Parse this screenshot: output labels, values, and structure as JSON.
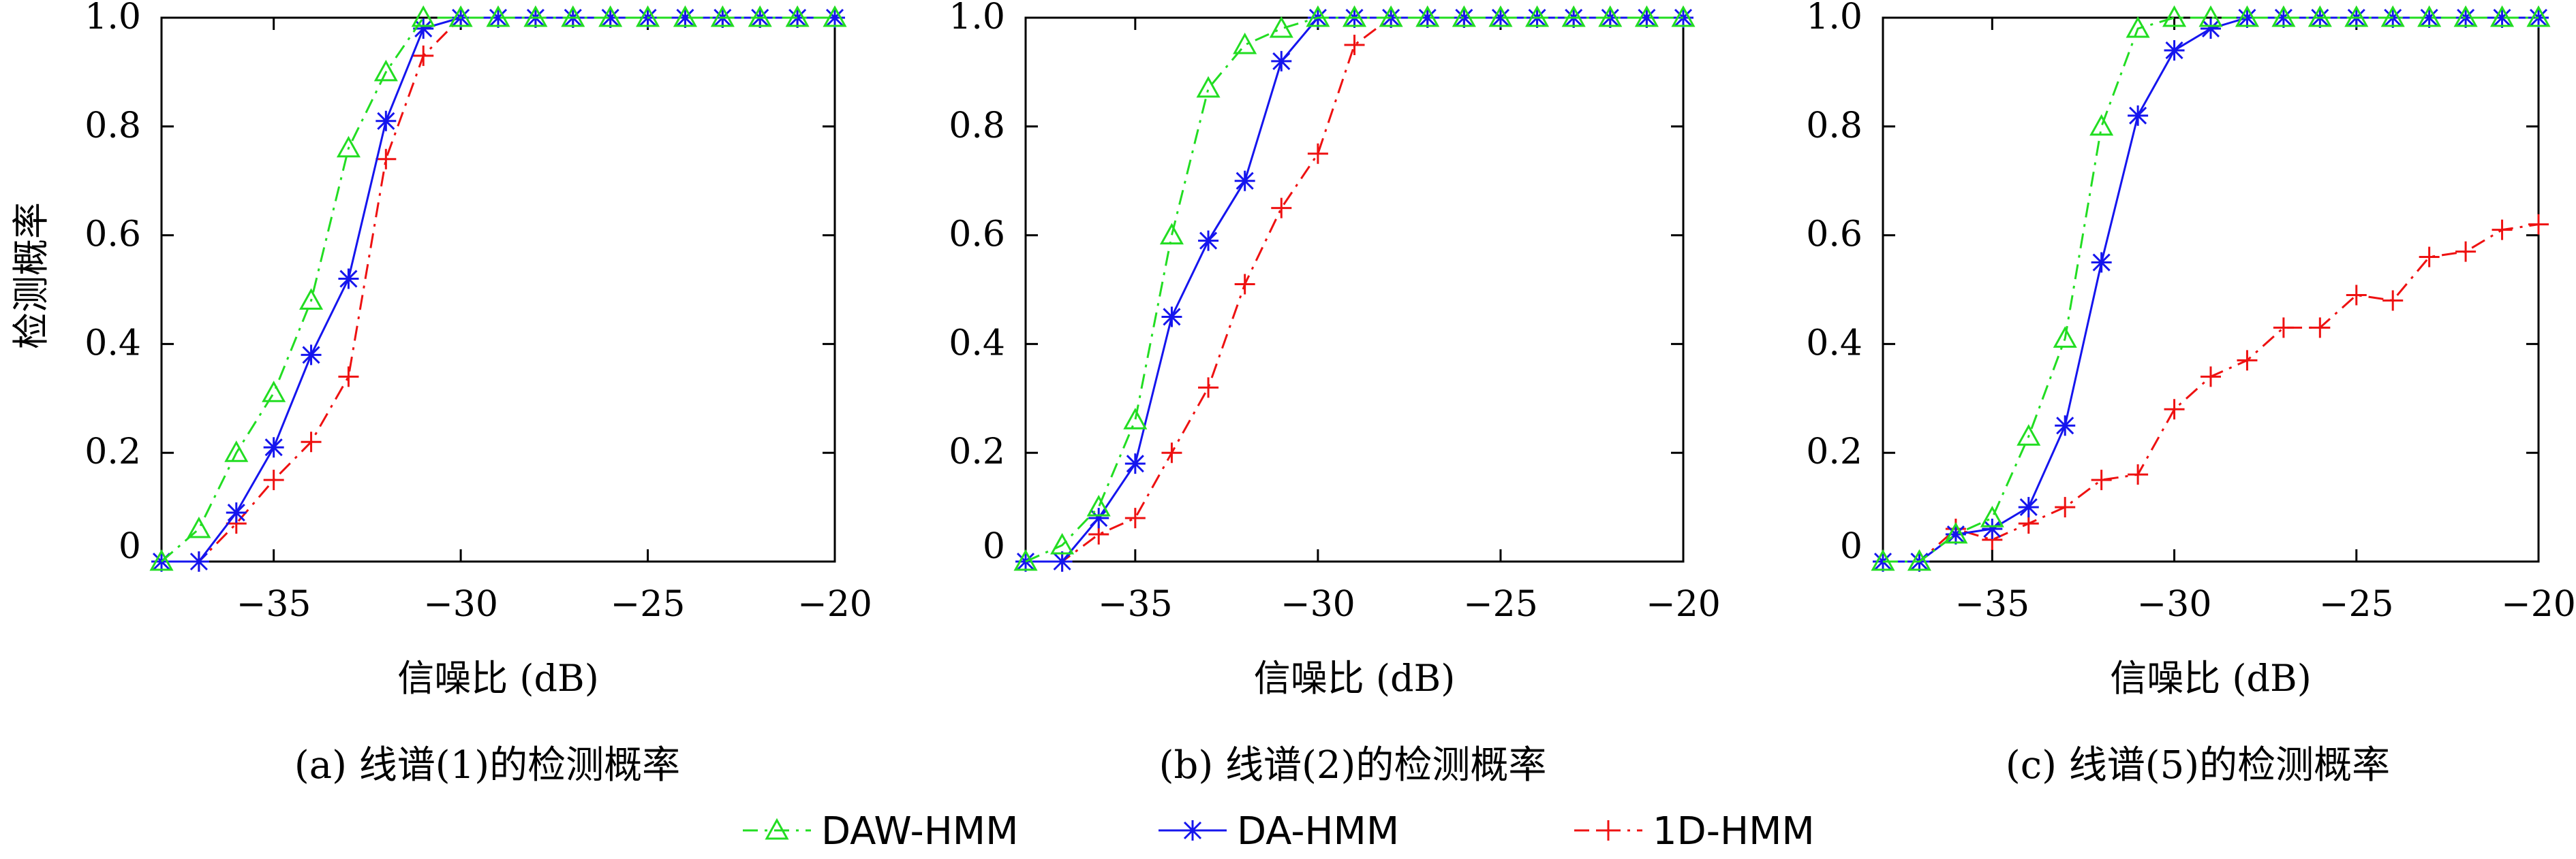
{
  "y_axis_label": "检测概率",
  "series_meta": [
    {
      "name": "DAW-HMM",
      "color": "#22dd22",
      "dash": "22,10,4,10",
      "marker": "triangle"
    },
    {
      "name": "DA-HMM",
      "color": "#1515ee",
      "dash": "",
      "marker": "asterisk"
    },
    {
      "name": "1D-HMM",
      "color": "#ee1111",
      "dash": "22,10,4,10",
      "marker": "plus"
    }
  ],
  "chart_data": [
    {
      "type": "line",
      "caption": "(a) 线谱(1)的检测概率",
      "xlabel": "信噪比 (dB)",
      "ylabel": "检测概率",
      "xlim": [
        -38,
        -20
      ],
      "ylim": [
        0,
        1
      ],
      "x_ticks": [
        -35,
        -30,
        -25,
        -20
      ],
      "x_tick_labels": [
        "−35",
        "−30",
        "−25",
        "−20"
      ],
      "y_ticks": [
        0,
        0.2,
        0.4,
        0.6,
        0.8,
        1.0
      ],
      "y_tick_labels": [
        "0",
        "0.2",
        "0.4",
        "0.6",
        "0.8",
        "1.0"
      ],
      "x": [
        -38,
        -37,
        -36,
        -35,
        -34,
        -33,
        -32,
        -31,
        -30,
        -29,
        -28,
        -27,
        -26,
        -25,
        -24,
        -23,
        -22,
        -21,
        -20
      ],
      "series": [
        {
          "name": "DAW-HMM",
          "values": [
            0,
            0.06,
            0.2,
            0.31,
            0.48,
            0.76,
            0.9,
            1.0,
            1,
            1,
            1,
            1,
            1,
            1,
            1,
            1,
            1,
            1,
            1
          ]
        },
        {
          "name": "DA-HMM",
          "values": [
            0,
            0,
            0.09,
            0.21,
            0.38,
            0.52,
            0.81,
            0.98,
            1,
            1,
            1,
            1,
            1,
            1,
            1,
            1,
            1,
            1,
            1
          ]
        },
        {
          "name": "1D-HMM",
          "values": [
            0,
            0,
            0.07,
            0.15,
            0.22,
            0.34,
            0.74,
            0.93,
            1,
            1,
            1,
            1,
            1,
            1,
            1,
            1,
            1,
            1,
            1
          ]
        }
      ]
    },
    {
      "type": "line",
      "caption": "(b) 线谱(2)的检测概率",
      "xlabel": "信噪比 (dB)",
      "ylabel": "",
      "xlim": [
        -38,
        -20
      ],
      "ylim": [
        0,
        1
      ],
      "x_ticks": [
        -35,
        -30,
        -25,
        -20
      ],
      "x_tick_labels": [
        "−35",
        "−30",
        "−25",
        "−20"
      ],
      "y_ticks": [
        0,
        0.2,
        0.4,
        0.6,
        0.8,
        1.0
      ],
      "y_tick_labels": [
        "0",
        "0.2",
        "0.4",
        "0.6",
        "0.8",
        "1.0"
      ],
      "x": [
        -38,
        -37,
        -36,
        -35,
        -34,
        -33,
        -32,
        -31,
        -30,
        -29,
        -28,
        -27,
        -26,
        -25,
        -24,
        -23,
        -22,
        -21,
        -20
      ],
      "series": [
        {
          "name": "DAW-HMM",
          "values": [
            0,
            0.03,
            0.1,
            0.26,
            0.6,
            0.87,
            0.95,
            0.98,
            1,
            1,
            1,
            1,
            1,
            1,
            1,
            1,
            1,
            1,
            1
          ]
        },
        {
          "name": "DA-HMM",
          "values": [
            0,
            0,
            0.08,
            0.18,
            0.45,
            0.59,
            0.7,
            0.92,
            1,
            1,
            1,
            1,
            1,
            1,
            1,
            1,
            1,
            1,
            1
          ]
        },
        {
          "name": "1D-HMM",
          "values": [
            0,
            0,
            0.05,
            0.08,
            0.2,
            0.32,
            0.51,
            0.65,
            0.75,
            0.95,
            1,
            1,
            1,
            1,
            1,
            1,
            1,
            1,
            1
          ]
        }
      ]
    },
    {
      "type": "line",
      "caption": "(c) 线谱(5)的检测概率",
      "xlabel": "信噪比 (dB)",
      "ylabel": "",
      "xlim": [
        -38,
        -20
      ],
      "ylim": [
        0,
        1
      ],
      "x_ticks": [
        -35,
        -30,
        -25,
        -20
      ],
      "x_tick_labels": [
        "−35",
        "−30",
        "−25",
        "−20"
      ],
      "y_ticks": [
        0,
        0.2,
        0.4,
        0.6,
        0.8,
        1.0
      ],
      "y_tick_labels": [
        "0",
        "0.2",
        "0.4",
        "0.6",
        "0.8",
        "1.0"
      ],
      "x": [
        -38,
        -37,
        -36,
        -35,
        -34,
        -33,
        -32,
        -31,
        -30,
        -29,
        -28,
        -27,
        -26,
        -25,
        -24,
        -23,
        -22,
        -21,
        -20
      ],
      "series": [
        {
          "name": "DAW-HMM",
          "values": [
            0,
            0,
            0.05,
            0.08,
            0.23,
            0.41,
            0.8,
            0.98,
            1.0,
            1.0,
            1,
            1,
            1,
            1,
            1,
            1,
            1,
            1,
            1
          ]
        },
        {
          "name": "DA-HMM",
          "values": [
            0,
            0,
            0.05,
            0.06,
            0.1,
            0.25,
            0.55,
            0.82,
            0.94,
            0.98,
            1,
            1,
            1,
            1,
            1,
            1,
            1,
            1,
            1
          ]
        },
        {
          "name": "1D-HMM",
          "values": [
            0,
            0,
            0.06,
            0.04,
            0.07,
            0.1,
            0.15,
            0.16,
            0.28,
            0.34,
            0.37,
            0.43,
            0.43,
            0.49,
            0.48,
            0.56,
            0.57,
            0.61,
            0.62
          ]
        }
      ]
    }
  ]
}
